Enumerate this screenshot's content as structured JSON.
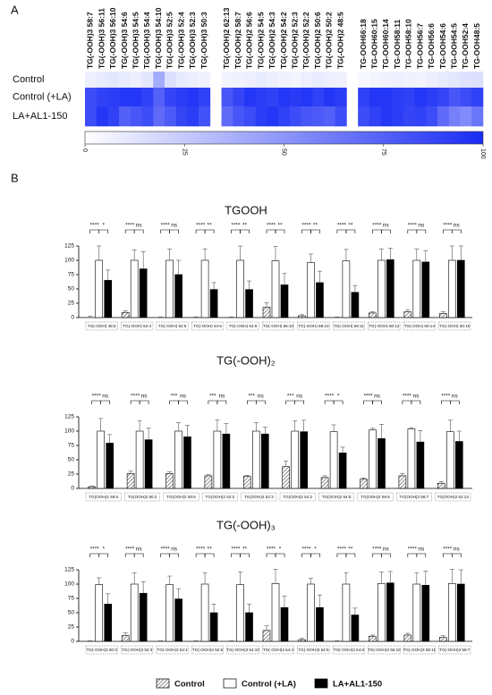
{
  "panel_labels": [
    "A",
    "B"
  ],
  "chart_data": [
    {
      "type": "heatmap",
      "x": [
        "TG(-OOH)3 58:7",
        "TG(-OOH)3 56:11",
        "TG(-OOH)3 56:10",
        "TG(-OOH)3 54:6",
        "TG(-OOH)3 54:5",
        "TG(-OOH)3 54:4",
        "TG(-OOH)3 54:10",
        "TG(-OOH)3 52:5",
        "TG(-OOH)3 52:4",
        "TG(-OOH)3 52:3",
        "TG(-OOH)3 50:3",
        null,
        "TG(-OOH)2 62:13",
        "TG(-OOH)2 58:7",
        "TG(-OOH)2 56:6",
        "TG(-OOH)2 54:5",
        "TG(-OOH)2 54:3",
        "TG(-OOH)2 54:2",
        "TG(-OOH)2 52:3",
        "TG(-OOH)2 52:2",
        "TG(-OOH)2 50:6",
        "TG(-OOH)2 50:2",
        "TG(-OOH)2 48:5",
        null,
        "TG-OOH66:18",
        "TG-OOH60:15",
        "TG-OOH60:14",
        "TG-OOH58:11",
        "TG-OOH58:10",
        "TG-OOH56:7",
        "TG-OOH56:6",
        "TG-OOH54:6",
        "TG-OOH54:5",
        "TG-OOH52:4",
        "TG-OOH48:5"
      ],
      "rows": [
        "Control",
        "Control (+LA)",
        "LA+AL1-150"
      ],
      "values": [
        [
          8,
          10,
          12,
          10,
          8,
          12,
          40,
          15,
          10,
          8,
          6,
          null,
          5,
          6,
          8,
          10,
          8,
          6,
          5,
          8,
          10,
          8,
          6,
          null,
          4,
          5,
          6,
          8,
          6,
          5,
          8,
          10,
          12,
          14,
          15
        ],
        [
          85,
          90,
          92,
          95,
          95,
          90,
          75,
          88,
          92,
          95,
          90,
          null,
          80,
          88,
          95,
          92,
          90,
          95,
          93,
          95,
          90,
          95,
          92,
          null,
          90,
          95,
          95,
          92,
          90,
          95,
          92,
          88,
          80,
          85,
          90
        ],
        [
          85,
          95,
          90,
          75,
          80,
          85,
          70,
          78,
          88,
          92,
          82,
          null,
          70,
          80,
          85,
          92,
          95,
          90,
          85,
          80,
          78,
          75,
          85,
          null,
          85,
          90,
          95,
          92,
          88,
          90,
          85,
          70,
          60,
          55,
          65
        ]
      ],
      "zlim": [
        0,
        100
      ],
      "zticks": [
        0,
        25,
        50,
        75,
        100
      ],
      "colormap": [
        "#ffffff",
        "#1a2cf5"
      ]
    },
    {
      "type": "bar",
      "title": "TGOOH",
      "categories": [
        "TG(-OOH) 48:5",
        "TG(-OOH) 52:4",
        "TG(-OOH) 54:5",
        "TG(-OOH) 54:6",
        "TG(-OOH) 54:9",
        "TG(-OOH) 56:10",
        "TG(-OOH) 58:10",
        "TG(-OOH) 58:11",
        "TG(-OOH) 60:12",
        "TG(-OOH) 60:14",
        "TG(-OOH) 60:15"
      ],
      "series": [
        {
          "name": "Control",
          "color": "#444444",
          "pattern": "hatch",
          "values": [
            0,
            9,
            0,
            0,
            0,
            18,
            3,
            0,
            8,
            10,
            7
          ],
          "errors": [
            2,
            3,
            1,
            1,
            1,
            8,
            2,
            1,
            2,
            3,
            3
          ]
        },
        {
          "name": "Control (+LA)",
          "color": "#ffffff",
          "values": [
            100,
            100,
            100,
            100,
            100,
            99,
            96,
            99,
            100,
            100,
            100
          ],
          "errors": [
            25,
            18,
            20,
            20,
            25,
            25,
            15,
            20,
            20,
            20,
            25
          ]
        },
        {
          "name": "LA+AL1-150",
          "color": "#000000",
          "values": [
            65,
            85,
            75,
            49,
            49,
            57,
            61,
            44,
            101,
            97,
            100
          ],
          "errors": [
            18,
            30,
            25,
            12,
            15,
            20,
            20,
            12,
            20,
            20,
            25
          ]
        }
      ],
      "significance": [
        [
          "****",
          "*"
        ],
        [
          "****",
          "ns"
        ],
        [
          "****",
          "ns"
        ],
        [
          "****",
          "**"
        ],
        [
          "****",
          "**"
        ],
        [
          "****",
          "**"
        ],
        [
          "****",
          "**"
        ],
        [
          "****",
          "**"
        ],
        [
          "****",
          "ns"
        ],
        [
          "****",
          "ns"
        ],
        [
          "****",
          "ns"
        ]
      ],
      "ylim": [
        0,
        125
      ],
      "yticks": [
        0,
        25,
        50,
        75,
        100,
        125
      ]
    },
    {
      "type": "bar",
      "title": "TG(-OOH)₂",
      "categories": [
        "TG(OOH)2 48:5",
        "TG(OOH)2 50:2",
        "TG(OOH)2 50:6",
        "TG(OOH)2 52:2",
        "TG(OOH)2 52:3",
        "TG(OOH)2 54:2",
        "TG(OOH)2 54:5",
        "TG(OOH)2 56:6",
        "TG(OOH)2 58:7",
        "TG(OOH)2 62:13"
      ],
      "series": [
        {
          "name": "Control",
          "color": "#444444",
          "pattern": "hatch",
          "values": [
            3,
            26,
            26,
            22,
            21,
            38,
            19,
            16,
            22,
            9
          ],
          "errors": [
            1,
            4,
            3,
            2,
            2,
            10,
            3,
            2,
            4,
            3
          ]
        },
        {
          "name": "Control (+LA)",
          "color": "#ffffff",
          "values": [
            100,
            100,
            100,
            100,
            100,
            100,
            99,
            102,
            104,
            99
          ],
          "errors": [
            22,
            18,
            15,
            20,
            15,
            18,
            12,
            3,
            2,
            20
          ]
        },
        {
          "name": "LA+AL1-150",
          "color": "#000000",
          "values": [
            79,
            85,
            90,
            95,
            95,
            99,
            62,
            87,
            81,
            82
          ],
          "errors": [
            15,
            20,
            20,
            18,
            12,
            20,
            10,
            25,
            20,
            18
          ]
        }
      ],
      "significance": [
        [
          "****",
          "ns"
        ],
        [
          "****",
          "ns"
        ],
        [
          "***",
          "ns"
        ],
        [
          "***",
          "ns"
        ],
        [
          "***",
          "ns"
        ],
        [
          "***",
          "ns"
        ],
        [
          "****",
          "*"
        ],
        [
          "****",
          "ns"
        ],
        [
          "****",
          "ns"
        ],
        [
          "****",
          "ns"
        ]
      ],
      "ylim": [
        0,
        125
      ],
      "yticks": [
        0,
        25,
        50,
        75,
        100,
        125
      ]
    },
    {
      "type": "bar",
      "title": "TG(-OOH)₃",
      "categories": [
        "TG(-OOH)3 50:3",
        "TG(-OOH)3 52:3",
        "TG(-OOH)3 52:4",
        "TG(-OOH)3 52:5",
        "TG(-OOH)3 54:10",
        "TG(-OOH)3 54:4",
        "TG(-OOH)3 54:5",
        "TG(-OOH)3 54:6",
        "TG(-OOH)3 56:10",
        "TG(-OOH)3 56:11",
        "TG(-OOH)3 58:7"
      ],
      "series": [
        {
          "name": "Control",
          "color": "#444444",
          "pattern": "hatch",
          "values": [
            0,
            10,
            0,
            0,
            0,
            19,
            3,
            0,
            9,
            11,
            7
          ],
          "errors": [
            1,
            5,
            1,
            1,
            1,
            8,
            2,
            1,
            2,
            3,
            3
          ]
        },
        {
          "name": "Control (+LA)",
          "color": "#ffffff",
          "values": [
            99,
            100,
            99,
            100,
            99,
            101,
            100,
            100,
            101,
            100,
            101
          ],
          "errors": [
            12,
            20,
            15,
            20,
            22,
            25,
            10,
            20,
            20,
            20,
            25
          ]
        },
        {
          "name": "LA+AL1-150",
          "color": "#000000",
          "values": [
            65,
            84,
            74,
            50,
            50,
            59,
            59,
            46,
            102,
            98,
            100
          ],
          "errors": [
            18,
            20,
            18,
            15,
            15,
            20,
            22,
            12,
            20,
            25,
            25
          ]
        }
      ],
      "significance": [
        [
          "****",
          "*"
        ],
        [
          "****",
          "ns"
        ],
        [
          "****",
          "ns"
        ],
        [
          "****",
          "**"
        ],
        [
          "****",
          "**"
        ],
        [
          "****",
          "*"
        ],
        [
          "****",
          "*"
        ],
        [
          "****",
          "**"
        ],
        [
          "****",
          "ns"
        ],
        [
          "****",
          "ns"
        ],
        [
          "****",
          "ns"
        ]
      ],
      "ylim": [
        0,
        125
      ],
      "yticks": [
        0,
        25,
        50,
        75,
        100,
        125
      ]
    }
  ]
}
